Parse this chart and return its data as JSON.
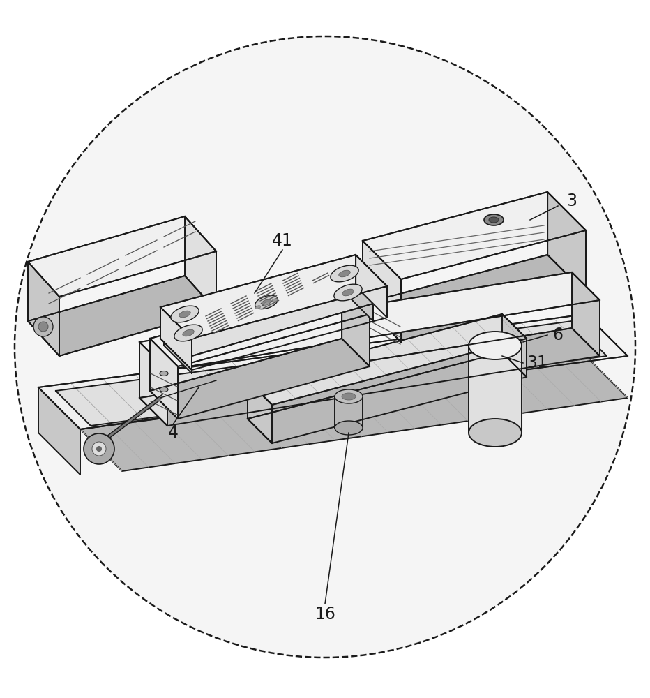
{
  "fig_width": 9.32,
  "fig_height": 10.0,
  "bg_color": "#ffffff",
  "circle_fill": "#f5f5f5",
  "line_color": "#1a1a1a",
  "light_fill": "#f0f0f0",
  "mid_fill": "#e0e0e0",
  "dark_fill": "#c8c8c8",
  "darker_fill": "#b8b8b8",
  "label_fontsize": 17,
  "label_color": "#1a1a1a"
}
